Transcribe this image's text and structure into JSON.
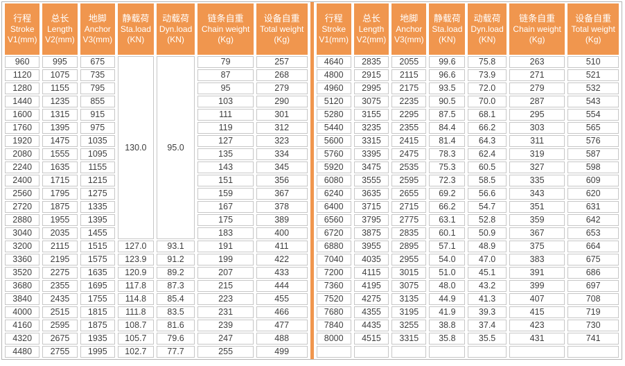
{
  "table": {
    "colors": {
      "accent": "#F0964E",
      "header_text": "#ffffff",
      "cell_border": "#c6c6c6",
      "outer_border": "#b4b4b4",
      "text": "#3d3d3d"
    },
    "headers": [
      {
        "key": "stroke",
        "cn": "行程",
        "en": "Stroke",
        "unit": "V1(mm)"
      },
      {
        "key": "length",
        "cn": "总长",
        "en": "Length",
        "unit": "V2(mm)"
      },
      {
        "key": "anchor",
        "cn": "地脚",
        "en": "Anchor",
        "unit": "V3(mm)"
      },
      {
        "key": "sta-load",
        "cn": "静载荷",
        "en": "Sta.load",
        "unit": "(KN)"
      },
      {
        "key": "dyn-load",
        "cn": "动载荷",
        "en": "Dyn.load",
        "unit": "(KN)"
      },
      {
        "key": "chain-weight",
        "cn": "链条自重",
        "en": "Chain weight",
        "unit": "(Kg)"
      },
      {
        "key": "total-weight",
        "cn": "设备自重",
        "en": "Total weight",
        "unit": "(Kg)"
      }
    ],
    "left": {
      "merged": {
        "sta": "130.0",
        "dyn": "95.0",
        "span": 14
      },
      "rows": [
        [
          "960",
          "995",
          "675",
          null,
          null,
          "79",
          "257"
        ],
        [
          "1120",
          "1075",
          "735",
          null,
          null,
          "87",
          "268"
        ],
        [
          "1280",
          "1155",
          "795",
          null,
          null,
          "95",
          "279"
        ],
        [
          "1440",
          "1235",
          "855",
          null,
          null,
          "103",
          "290"
        ],
        [
          "1600",
          "1315",
          "915",
          null,
          null,
          "111",
          "301"
        ],
        [
          "1760",
          "1395",
          "975",
          null,
          null,
          "119",
          "312"
        ],
        [
          "1920",
          "1475",
          "1035",
          null,
          null,
          "127",
          "323"
        ],
        [
          "2080",
          "1555",
          "1095",
          null,
          null,
          "135",
          "334"
        ],
        [
          "2240",
          "1635",
          "1155",
          null,
          null,
          "143",
          "345"
        ],
        [
          "2400",
          "1715",
          "1215",
          null,
          null,
          "151",
          "356"
        ],
        [
          "2560",
          "1795",
          "1275",
          null,
          null,
          "159",
          "367"
        ],
        [
          "2720",
          "1875",
          "1335",
          null,
          null,
          "167",
          "378"
        ],
        [
          "2880",
          "1955",
          "1395",
          null,
          null,
          "175",
          "389"
        ],
        [
          "3040",
          "2035",
          "1455",
          null,
          null,
          "183",
          "400"
        ],
        [
          "3200",
          "2115",
          "1515",
          "127.0",
          "93.1",
          "191",
          "411"
        ],
        [
          "3360",
          "2195",
          "1575",
          "123.9",
          "91.2",
          "199",
          "422"
        ],
        [
          "3520",
          "2275",
          "1635",
          "120.9",
          "89.2",
          "207",
          "433"
        ],
        [
          "3680",
          "2355",
          "1695",
          "117.8",
          "87.3",
          "215",
          "444"
        ],
        [
          "3840",
          "2435",
          "1755",
          "114.8",
          "85.4",
          "223",
          "455"
        ],
        [
          "4000",
          "2515",
          "1815",
          "111.8",
          "83.5",
          "231",
          "466"
        ],
        [
          "4160",
          "2595",
          "1875",
          "108.7",
          "81.6",
          "239",
          "477"
        ],
        [
          "4320",
          "2675",
          "1935",
          "105.7",
          "79.6",
          "247",
          "488"
        ],
        [
          "4480",
          "2755",
          "1995",
          "102.7",
          "77.7",
          "255",
          "499"
        ]
      ]
    },
    "right": {
      "rows": [
        [
          "4640",
          "2835",
          "2055",
          "99.6",
          "75.8",
          "263",
          "510"
        ],
        [
          "4800",
          "2915",
          "2115",
          "96.6",
          "73.9",
          "271",
          "521"
        ],
        [
          "4960",
          "2995",
          "2175",
          "93.5",
          "72.0",
          "279",
          "532"
        ],
        [
          "5120",
          "3075",
          "2235",
          "90.5",
          "70.0",
          "287",
          "543"
        ],
        [
          "5280",
          "3155",
          "2295",
          "87.5",
          "68.1",
          "295",
          "554"
        ],
        [
          "5440",
          "3235",
          "2355",
          "84.4",
          "66.2",
          "303",
          "565"
        ],
        [
          "5600",
          "3315",
          "2415",
          "81.4",
          "64.3",
          "311",
          "576"
        ],
        [
          "5760",
          "3395",
          "2475",
          "78.3",
          "62.4",
          "319",
          "587"
        ],
        [
          "5920",
          "3475",
          "2535",
          "75.3",
          "60.5",
          "327",
          "598"
        ],
        [
          "6080",
          "3555",
          "2595",
          "72.3",
          "58.5",
          "335",
          "609"
        ],
        [
          "6240",
          "3635",
          "2655",
          "69.2",
          "56.6",
          "343",
          "620"
        ],
        [
          "6400",
          "3715",
          "2715",
          "66.2",
          "54.7",
          "351",
          "631"
        ],
        [
          "6560",
          "3795",
          "2775",
          "63.1",
          "52.8",
          "359",
          "642"
        ],
        [
          "6720",
          "3875",
          "2835",
          "60.1",
          "50.9",
          "367",
          "653"
        ],
        [
          "6880",
          "3955",
          "2895",
          "57.1",
          "48.9",
          "375",
          "664"
        ],
        [
          "7040",
          "4035",
          "2955",
          "54.0",
          "47.0",
          "383",
          "675"
        ],
        [
          "7200",
          "4115",
          "3015",
          "51.0",
          "45.1",
          "391",
          "686"
        ],
        [
          "7360",
          "4195",
          "3075",
          "48.0",
          "43.2",
          "399",
          "697"
        ],
        [
          "7520",
          "4275",
          "3135",
          "44.9",
          "41.3",
          "407",
          "708"
        ],
        [
          "7680",
          "4355",
          "3195",
          "41.9",
          "39.3",
          "415",
          "719"
        ],
        [
          "7840",
          "4435",
          "3255",
          "38.8",
          "37.4",
          "423",
          "730"
        ],
        [
          "8000",
          "4515",
          "3315",
          "35.8",
          "35.5",
          "431",
          "741"
        ],
        [
          "",
          "",
          "",
          "",
          "",
          "",
          ""
        ]
      ]
    }
  }
}
